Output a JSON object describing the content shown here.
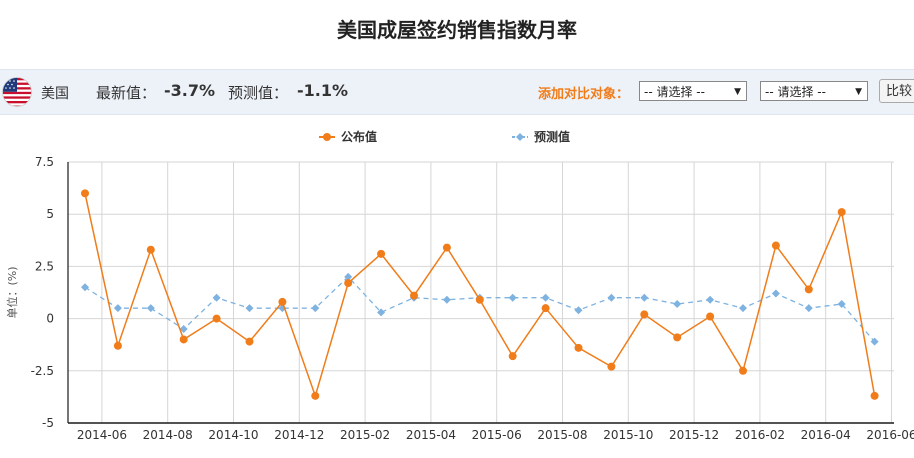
{
  "page": {
    "title": "美国成屋签约销售指数月率"
  },
  "infobar": {
    "country": "美国",
    "latest_label": "最新值：",
    "latest_value": "-3.7%",
    "forecast_label": "预测值：",
    "forecast_value": "-1.1%",
    "compare_label": "添加对比对象：",
    "select1_value": "-- 请选择 --",
    "select2_value": "-- 请选择 --",
    "compare_button": "比较",
    "flag_icon": "us-flag-icon"
  },
  "chart_data": {
    "type": "line",
    "ylabel": "单位：(%)",
    "ylim": [
      -5,
      7.5
    ],
    "yticks": [
      -5,
      -2.5,
      0,
      2.5,
      5,
      7.5
    ],
    "ytick_labels": [
      "-5",
      "-2.5",
      "0",
      "2.5",
      "5",
      "7.5"
    ],
    "x_dates": [
      "2014-05",
      "2014-06",
      "2014-07",
      "2014-08",
      "2014-09",
      "2014-10",
      "2014-11",
      "2014-12",
      "2015-01",
      "2015-02",
      "2015-03",
      "2015-04",
      "2015-05",
      "2015-06",
      "2015-07",
      "2015-08",
      "2015-09",
      "2015-10",
      "2015-11",
      "2015-12",
      "2016-01",
      "2016-02",
      "2016-03",
      "2016-04",
      "2016-05"
    ],
    "xtick_labels": [
      "2014-06",
      "2014-08",
      "2014-10",
      "2014-12",
      "2015-02",
      "2015-04",
      "2015-06",
      "2015-08",
      "2015-10",
      "2015-12",
      "2016-02",
      "2016-04",
      "2016-06"
    ],
    "legend_position": "top-center",
    "grid": true,
    "series": [
      {
        "name": "公布值",
        "color": "#f07c1a",
        "style": "solid",
        "values": [
          6.0,
          -1.3,
          3.3,
          -1.0,
          0.0,
          -1.1,
          0.8,
          -3.7,
          1.7,
          3.1,
          1.1,
          3.4,
          0.9,
          -1.8,
          0.5,
          -1.4,
          -2.3,
          0.2,
          -0.9,
          0.1,
          -2.5,
          3.5,
          1.4,
          5.1,
          -3.7
        ]
      },
      {
        "name": "预测值",
        "color": "#7eb2e0",
        "style": "dashed",
        "values": [
          1.5,
          0.5,
          0.5,
          -0.5,
          1.0,
          0.5,
          0.5,
          0.5,
          2.0,
          0.3,
          1.0,
          0.9,
          1.0,
          1.0,
          1.0,
          0.4,
          1.0,
          1.0,
          0.7,
          0.9,
          0.5,
          1.2,
          0.5,
          0.7,
          -1.1
        ]
      }
    ]
  }
}
